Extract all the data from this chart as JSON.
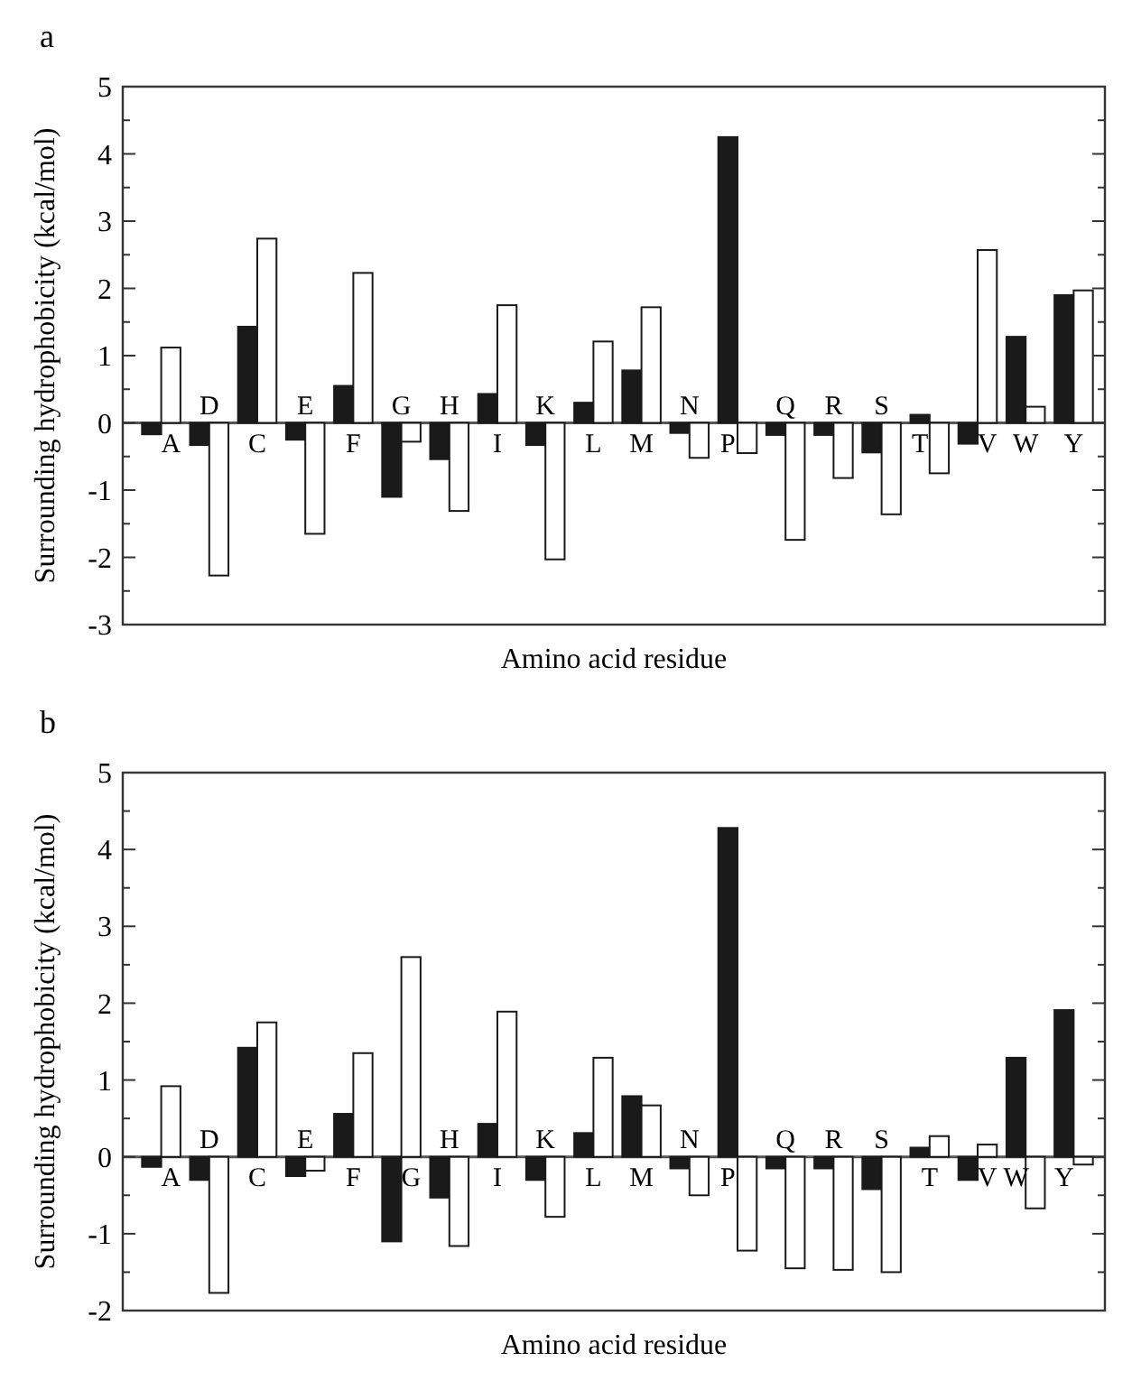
{
  "chart_data": [
    {
      "type": "bar",
      "title": "a",
      "xlabel": "Amino acid residue",
      "ylabel": "Surrounding hydrophobicity (kcal/mol)",
      "categories": [
        "A",
        "D",
        "C",
        "E",
        "F",
        "G",
        "H",
        "I",
        "K",
        "L",
        "M",
        "N",
        "P",
        "Q",
        "R",
        "S",
        "T",
        "V",
        "W",
        "Y"
      ],
      "series": [
        {
          "color": "#1a1a1a",
          "values": [
            -0.17,
            -0.33,
            1.43,
            -0.25,
            0.55,
            -1.1,
            -0.54,
            0.43,
            -0.33,
            0.3,
            0.78,
            -0.15,
            4.25,
            -0.18,
            -0.18,
            -0.44,
            0.12,
            -0.31,
            1.28,
            1.9
          ]
        },
        {
          "color": "#ffffff",
          "values": [
            1.12,
            -2.27,
            2.74,
            -1.65,
            2.23,
            -0.28,
            -1.31,
            1.75,
            -2.03,
            1.21,
            1.72,
            -0.52,
            -0.45,
            -1.74,
            -0.82,
            -1.36,
            -0.75,
            2.57,
            0.24,
            1.97
          ]
        }
      ],
      "ylim": [
        -3,
        5
      ],
      "yticks": [
        -3,
        {
          "value": -2.5,
          "label": null
        },
        -2,
        {
          "value": -1.5,
          "label": null
        },
        -1,
        {
          "value": -0.5,
          "label": null
        },
        0,
        {
          "value": 0.5,
          "label": null
        },
        1,
        {
          "value": 1.5,
          "label": null
        },
        2,
        {
          "value": 2.5,
          "label": null
        },
        3,
        {
          "value": 3.5,
          "label": null
        },
        4,
        {
          "value": 4.5,
          "label": null
        },
        5
      ],
      "grid": false
    },
    {
      "type": "bar",
      "title": "b",
      "xlabel": "Amino acid residue",
      "ylabel": "Surrounding hydrophobicity (kcal/mol)",
      "categories": [
        "A",
        "D",
        "C",
        "E",
        "F",
        "G",
        "H",
        "I",
        "K",
        "L",
        "M",
        "N",
        "P",
        "Q",
        "R",
        "S",
        "T",
        "V",
        "W",
        "Y"
      ],
      "series": [
        {
          "color": "#1a1a1a",
          "values": [
            -0.13,
            -0.3,
            1.42,
            -0.25,
            0.56,
            -1.1,
            -0.53,
            0.43,
            -0.3,
            0.31,
            0.79,
            -0.15,
            4.28,
            -0.15,
            -0.15,
            -0.42,
            0.12,
            -0.3,
            1.29,
            1.91
          ]
        },
        {
          "color": "#ffffff",
          "values": [
            0.92,
            -1.77,
            1.75,
            -0.18,
            1.35,
            2.6,
            -1.16,
            1.89,
            -0.78,
            1.29,
            0.67,
            -0.5,
            -1.22,
            -1.45,
            -1.47,
            -1.5,
            0.27,
            0.16,
            -0.67,
            -0.1
          ]
        }
      ],
      "ylim": [
        -2,
        5
      ],
      "yticks": [
        -2,
        {
          "value": -1.5,
          "label": null
        },
        -1,
        {
          "value": -0.5,
          "label": null
        },
        0,
        {
          "value": 0.5,
          "label": null
        },
        1,
        {
          "value": 1.5,
          "label": null
        },
        2,
        {
          "value": 2.5,
          "label": null
        },
        3,
        {
          "value": 3.5,
          "label": null
        },
        4,
        {
          "value": 4.5,
          "label": null
        },
        5
      ],
      "grid": false
    }
  ]
}
